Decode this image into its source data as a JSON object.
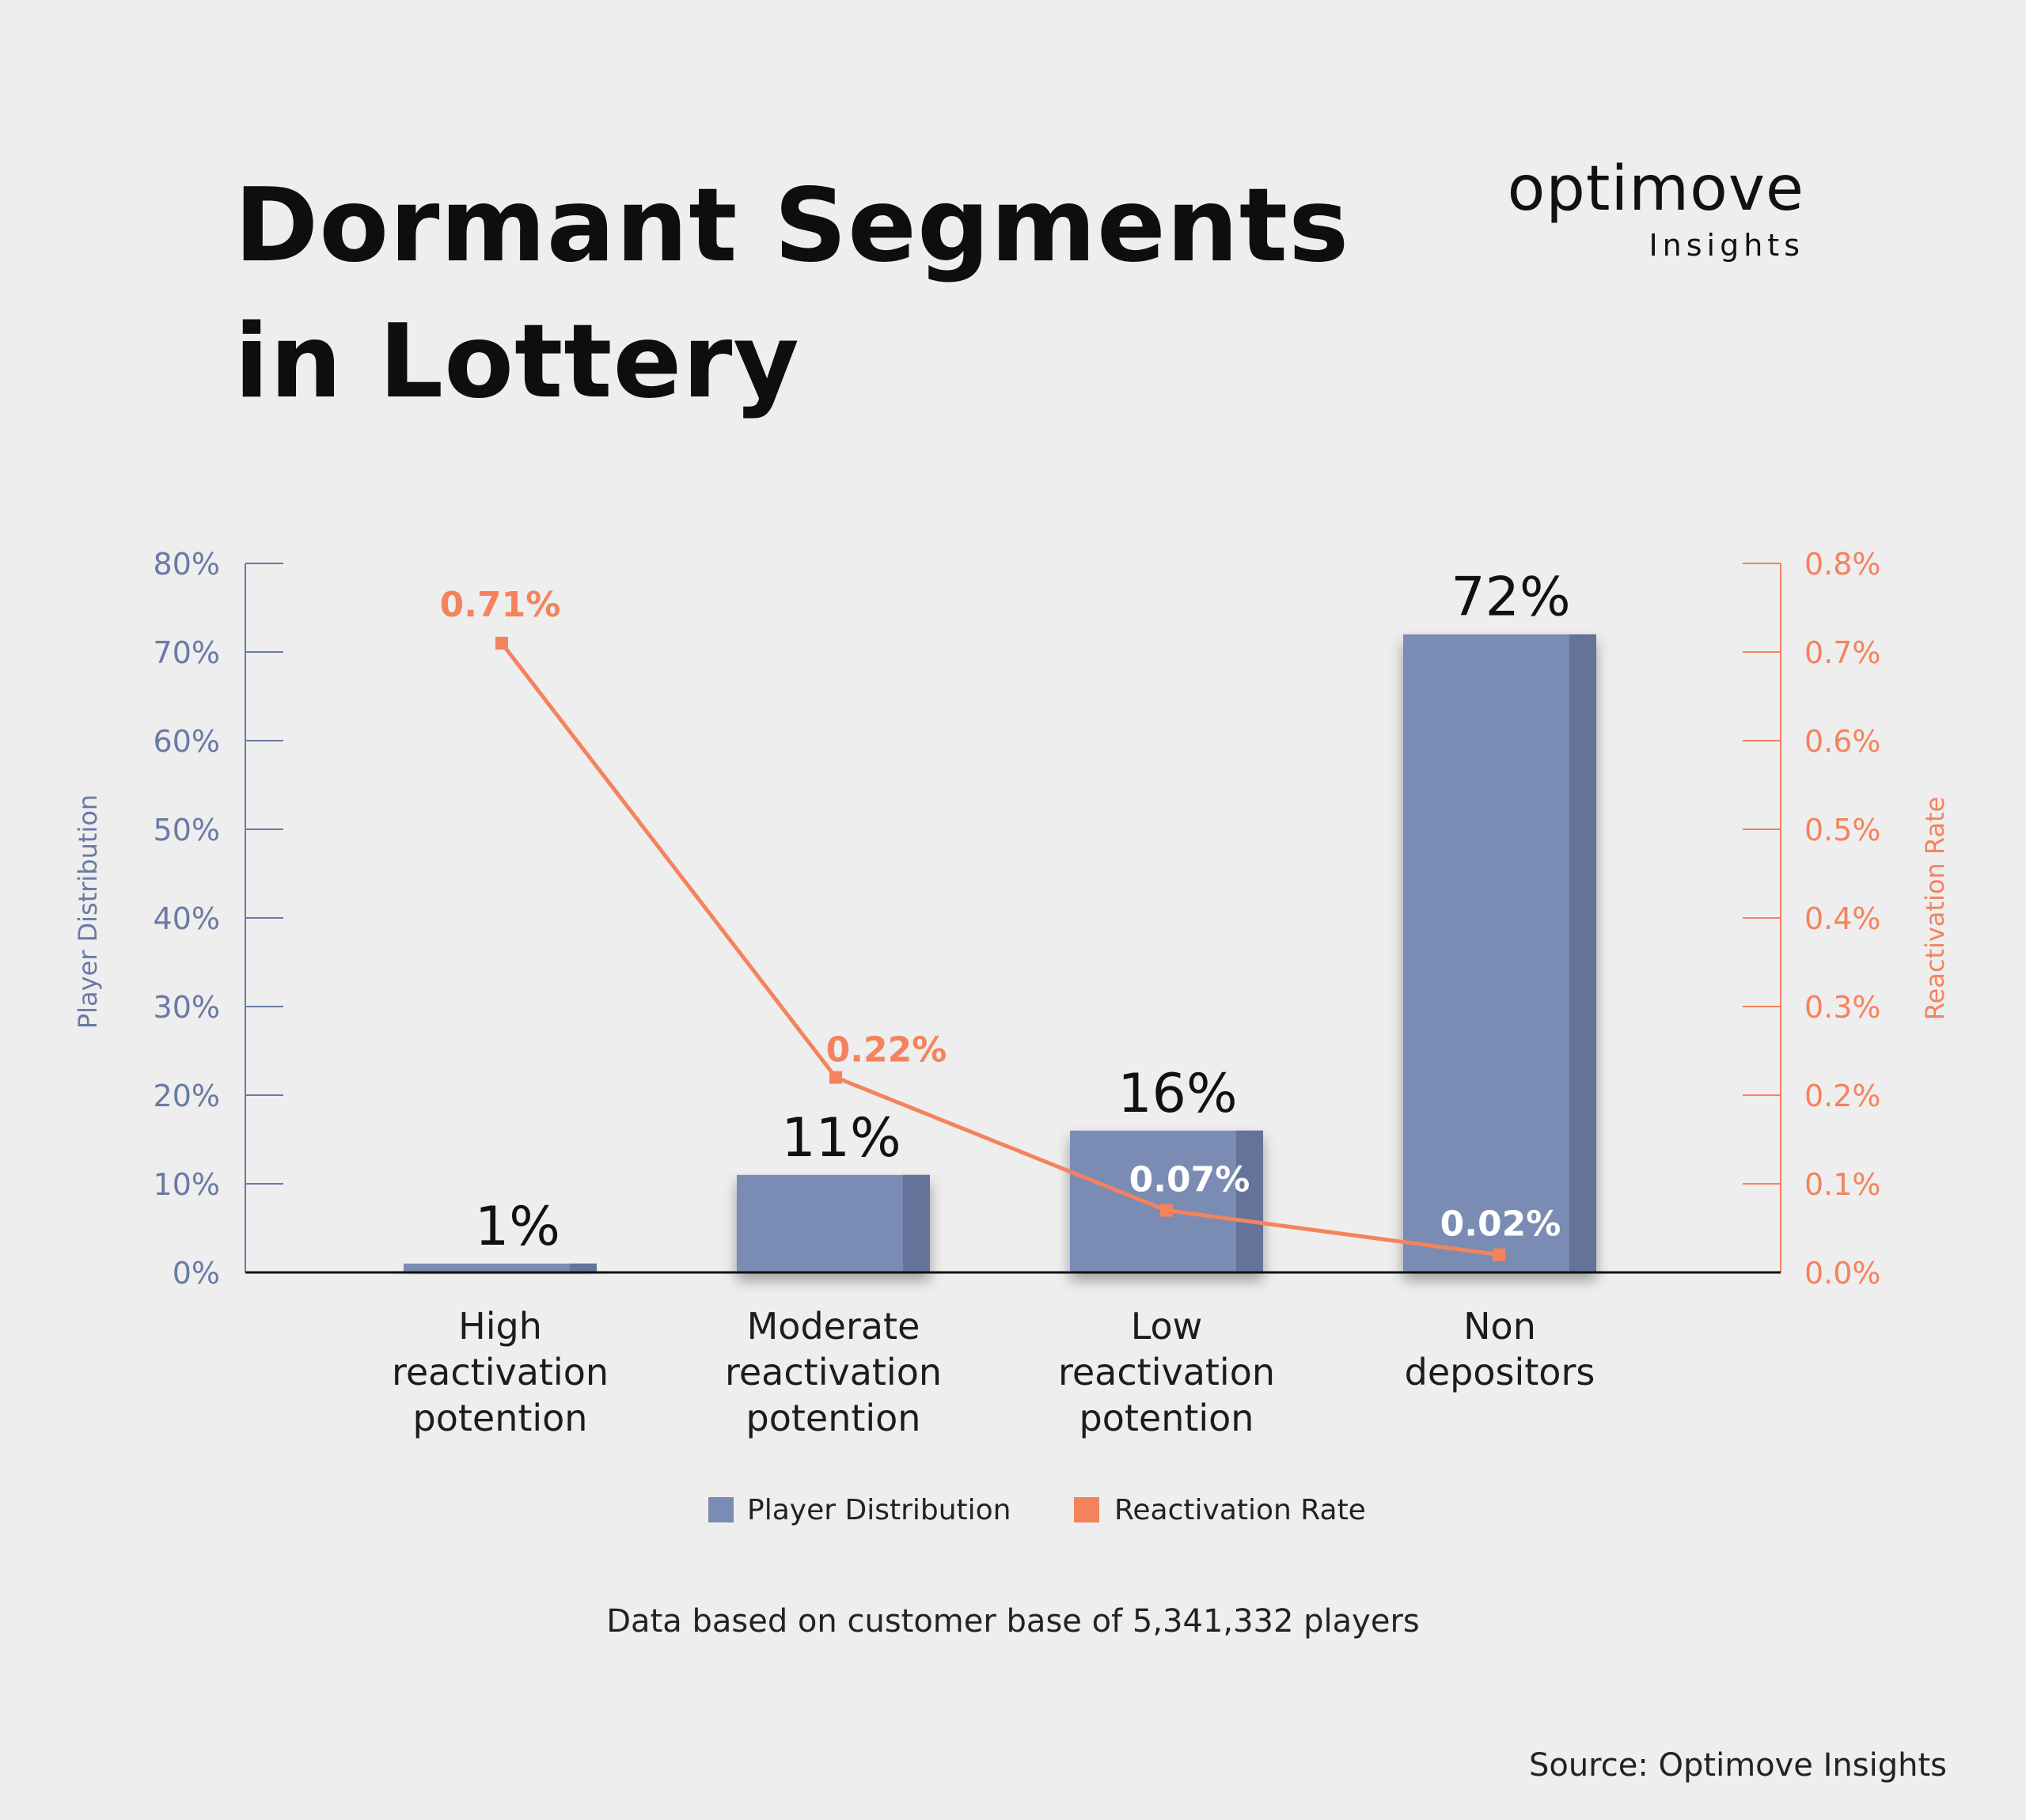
{
  "title_lines": [
    "Dormant Segments",
    "in Lottery"
  ],
  "logo": {
    "name": "optimove",
    "subtitle": "Insights"
  },
  "chart_data": {
    "type": "bar",
    "categories": [
      [
        "High",
        "reactivation",
        "potention"
      ],
      [
        "Moderate",
        "reactivation",
        "potention"
      ],
      [
        "Low",
        "reactivation",
        "potention"
      ],
      [
        "Non",
        "depositors"
      ]
    ],
    "series": [
      {
        "name": "Player Distribution",
        "type": "bar",
        "axis": "left",
        "color": "#7a8bb4",
        "values": [
          1,
          11,
          16,
          72
        ],
        "labels": [
          "1%",
          "11%",
          "16%",
          "72%"
        ]
      },
      {
        "name": "Reactivation Rate",
        "type": "line",
        "axis": "right",
        "color": "#f4835d",
        "values": [
          0.71,
          0.22,
          0.07,
          0.02
        ],
        "labels": [
          "0.71%",
          "0.22%",
          "0.07%",
          "0.02%"
        ]
      }
    ],
    "left_axis": {
      "label": "Player Distribution",
      "ylim": [
        0,
        80
      ],
      "ticks": [
        "0%",
        "10%",
        "20%",
        "30%",
        "40%",
        "50%",
        "60%",
        "70%",
        "80%"
      ],
      "color": "#6a7aa6"
    },
    "right_axis": {
      "label": "Reactivation Rate",
      "ylim": [
        0,
        0.8
      ],
      "ticks": [
        "0.0%",
        "0.1%",
        "0.2%",
        "0.3%",
        "0.4%",
        "0.5%",
        "0.6%",
        "0.7%",
        "0.8%"
      ],
      "color": "#f4835d"
    },
    "legend_position": "bottom-center",
    "grid": false
  },
  "footnote": "Data based on customer base of 5,341,332 players",
  "source": "Source: Optimove Insights"
}
